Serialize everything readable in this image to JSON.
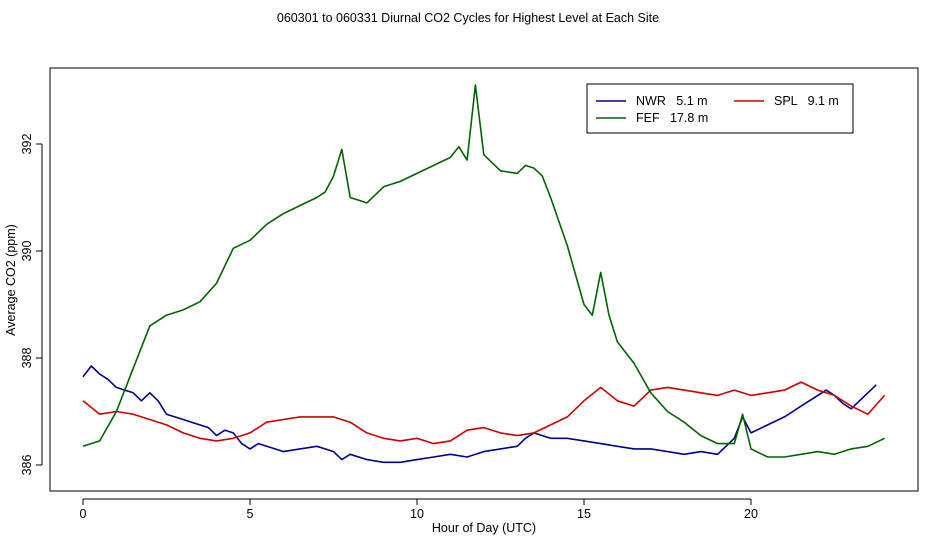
{
  "chart_data": {
    "type": "line",
    "title": "060301  to  060331 Diurnal CO2 Cycles for Highest Level at Each Site",
    "xlabel": "Hour of Day (UTC)",
    "ylabel": "Average CO2 (ppm)",
    "xlim": [
      -1,
      24.5
    ],
    "ylim": [
      385.8,
      393.3
    ],
    "xticks": [
      0,
      5,
      10,
      15,
      20
    ],
    "yticks": [
      386,
      388,
      390,
      392
    ],
    "legend_position": "top-right",
    "series": [
      {
        "name": "NWR   5.1 m",
        "color": "#00008b",
        "x": [
          0,
          0.25,
          0.5,
          0.75,
          1,
          1.25,
          1.5,
          1.75,
          2,
          2.25,
          2.5,
          2.75,
          3,
          3.25,
          3.5,
          3.75,
          4,
          4.25,
          4.5,
          4.75,
          5,
          5.25,
          5.5,
          5.75,
          6,
          6.5,
          7,
          7.25,
          7.5,
          7.75,
          8,
          8.5,
          9,
          9.5,
          10,
          10.5,
          11,
          11.5,
          12,
          12.5,
          13,
          13.25,
          13.5,
          13.75,
          14,
          14.5,
          15,
          15.5,
          16,
          16.5,
          17,
          17.5,
          18,
          18.5,
          19,
          19.5,
          19.75,
          20,
          20.5,
          21,
          21.25,
          21.5,
          21.75,
          22,
          22.25,
          22.5,
          22.75,
          23,
          23.25,
          23.5,
          23.75
        ],
        "y": [
          387.65,
          387.85,
          387.7,
          387.6,
          387.45,
          387.4,
          387.35,
          387.2,
          387.35,
          387.2,
          386.95,
          386.9,
          386.85,
          386.8,
          386.75,
          386.7,
          386.55,
          386.65,
          386.6,
          386.4,
          386.3,
          386.4,
          386.35,
          386.3,
          386.25,
          386.3,
          386.35,
          386.3,
          386.25,
          386.1,
          386.2,
          386.1,
          386.05,
          386.05,
          386.1,
          386.15,
          386.2,
          386.15,
          386.25,
          386.3,
          386.35,
          386.5,
          386.6,
          386.55,
          386.5,
          386.5,
          386.45,
          386.4,
          386.35,
          386.3,
          386.3,
          386.25,
          386.2,
          386.25,
          386.2,
          386.5,
          386.9,
          386.6,
          386.75,
          386.9,
          387.0,
          387.1,
          387.2,
          387.3,
          387.4,
          387.3,
          387.15,
          387.05,
          387.2,
          387.35,
          387.5
        ]
      },
      {
        "name": "SPL   9.1 m",
        "color": "#cc0000",
        "x": [
          0,
          0.5,
          1,
          1.5,
          2,
          2.5,
          3,
          3.5,
          4,
          4.5,
          5,
          5.5,
          6,
          6.5,
          7,
          7.5,
          8,
          8.5,
          9,
          9.5,
          10,
          10.5,
          11,
          11.5,
          12,
          12.5,
          13,
          13.5,
          14,
          14.5,
          15,
          15.5,
          16,
          16.5,
          17,
          17.5,
          18,
          18.5,
          19,
          19.5,
          20,
          20.5,
          21,
          21.5,
          22,
          22.5,
          23,
          23.5,
          24
        ],
        "y": [
          387.2,
          386.95,
          387.0,
          386.95,
          386.85,
          386.75,
          386.6,
          386.5,
          386.45,
          386.5,
          386.6,
          386.8,
          386.85,
          386.9,
          386.9,
          386.9,
          386.8,
          386.6,
          386.5,
          386.45,
          386.5,
          386.4,
          386.45,
          386.65,
          386.7,
          386.6,
          386.55,
          386.6,
          386.75,
          386.9,
          387.2,
          387.45,
          387.2,
          387.1,
          387.4,
          387.45,
          387.4,
          387.35,
          387.3,
          387.4,
          387.3,
          387.35,
          387.4,
          387.55,
          387.4,
          387.3,
          387.1,
          386.95,
          387.3
        ]
      },
      {
        "name": "FEF   17.8 m",
        "color": "#006400",
        "x": [
          0,
          0.5,
          1,
          1.5,
          2,
          2.5,
          3,
          3.5,
          4,
          4.5,
          5,
          5.5,
          6,
          6.5,
          7,
          7.25,
          7.5,
          7.75,
          8,
          8.5,
          9,
          9.5,
          10,
          10.5,
          11,
          11.25,
          11.5,
          11.75,
          12,
          12.5,
          13,
          13.25,
          13.5,
          13.75,
          14,
          14.5,
          15,
          15.25,
          15.5,
          15.75,
          16,
          16.5,
          17,
          17.5,
          18,
          18.5,
          19,
          19.5,
          19.75,
          20,
          20.5,
          21,
          21.5,
          22,
          22.5,
          23,
          23.5,
          24
        ],
        "y": [
          386.35,
          386.45,
          387.0,
          387.8,
          388.6,
          388.8,
          388.9,
          389.05,
          389.4,
          390.05,
          390.2,
          390.5,
          390.7,
          390.85,
          391.0,
          391.1,
          391.4,
          391.9,
          391.0,
          390.9,
          391.2,
          391.3,
          391.45,
          391.6,
          391.75,
          391.95,
          391.7,
          393.1,
          391.8,
          391.5,
          391.45,
          391.6,
          391.55,
          391.4,
          391.0,
          390.1,
          389.0,
          388.8,
          389.6,
          388.8,
          388.3,
          387.9,
          387.35,
          387.0,
          386.8,
          386.55,
          386.4,
          386.4,
          386.95,
          386.3,
          386.15,
          386.15,
          386.2,
          386.25,
          386.2,
          386.3,
          386.35,
          386.5
        ]
      }
    ]
  }
}
